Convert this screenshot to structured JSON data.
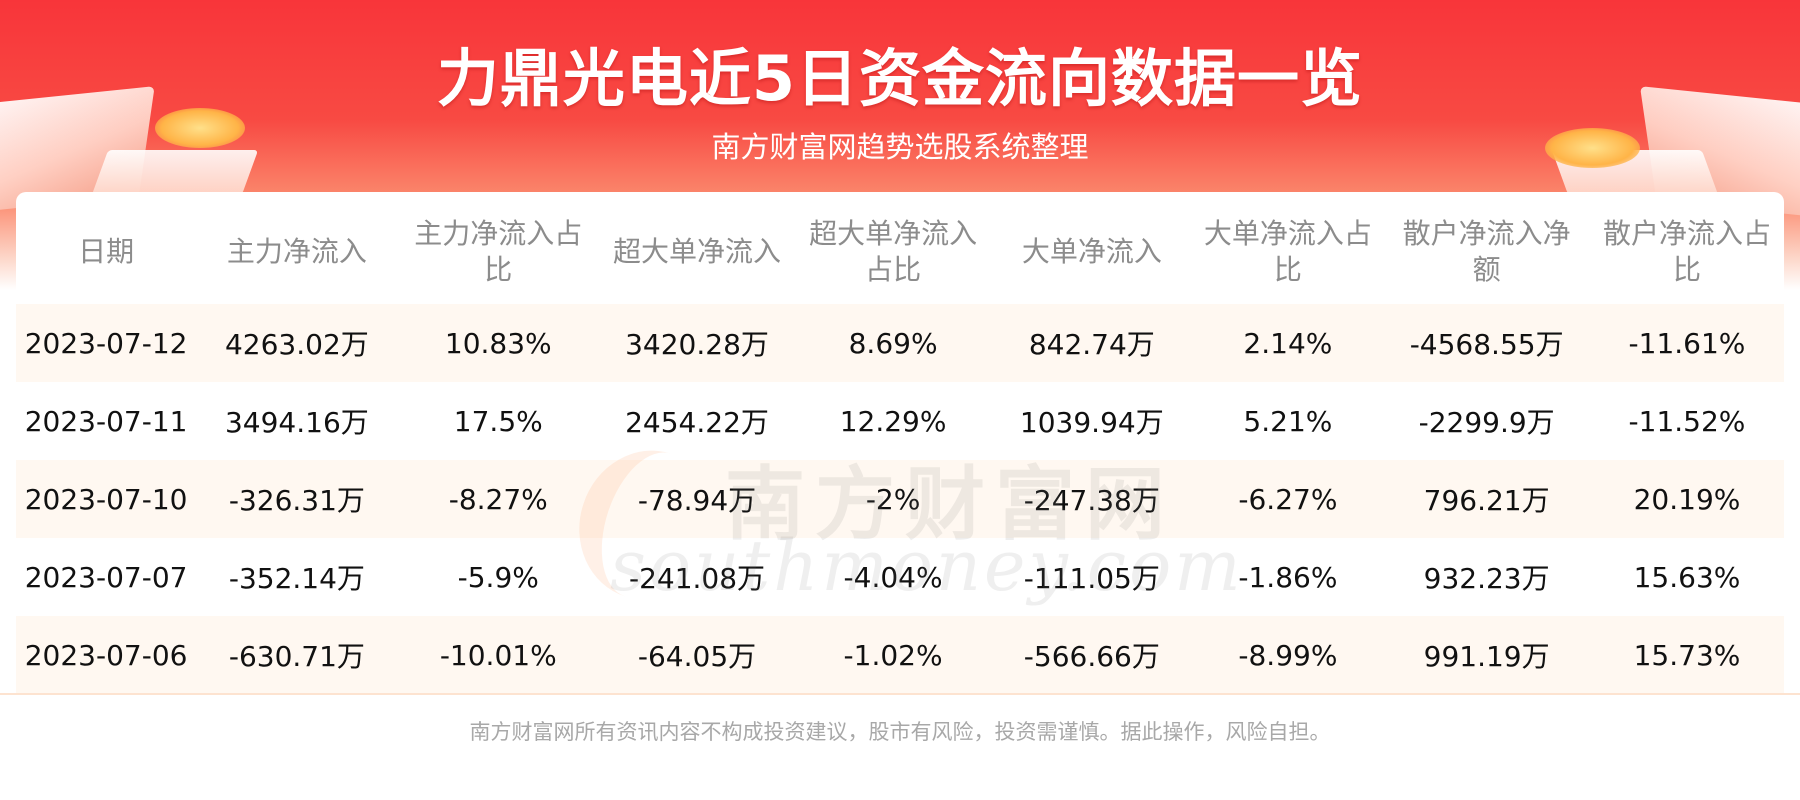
{
  "header": {
    "title": "力鼎光电近5日资金流向数据一览",
    "subtitle": "南方财富网趋势选股系统整理"
  },
  "watermark": {
    "cn": "南方财富网",
    "en": "southmoney.com"
  },
  "table": {
    "columns": [
      "日期",
      "主力净流入",
      "主力净流入占比",
      "超大单净流入",
      "超大单净流入占比",
      "大单净流入",
      "大单净流入占比",
      "散户净流入净额",
      "散户净流入占比"
    ],
    "rows": [
      [
        "2023-07-12",
        "4263.02万",
        "10.83%",
        "3420.28万",
        "8.69%",
        "842.74万",
        "2.14%",
        "-4568.55万",
        "-11.61%"
      ],
      [
        "2023-07-11",
        "3494.16万",
        "17.5%",
        "2454.22万",
        "12.29%",
        "1039.94万",
        "5.21%",
        "-2299.9万",
        "-11.52%"
      ],
      [
        "2023-07-10",
        "-326.31万",
        "-8.27%",
        "-78.94万",
        "-2%",
        "-247.38万",
        "-6.27%",
        "796.21万",
        "20.19%"
      ],
      [
        "2023-07-07",
        "-352.14万",
        "-5.9%",
        "-241.08万",
        "-4.04%",
        "-111.05万",
        "-1.86%",
        "932.23万",
        "15.63%"
      ],
      [
        "2023-07-06",
        "-630.71万",
        "-10.01%",
        "-64.05万",
        "-1.02%",
        "-566.66万",
        "-8.99%",
        "991.19万",
        "15.73%"
      ]
    ]
  },
  "footer": {
    "disclaimer": "南方财富网所有资讯内容不构成投资建议，股市有风险，投资需谨慎。据此操作，风险自担。"
  },
  "colors": {
    "header_red": "#f8353a",
    "stripe": "#fff8f1",
    "header_text": "#8c8c8c",
    "disclaimer_text": "#a8a8a8"
  }
}
